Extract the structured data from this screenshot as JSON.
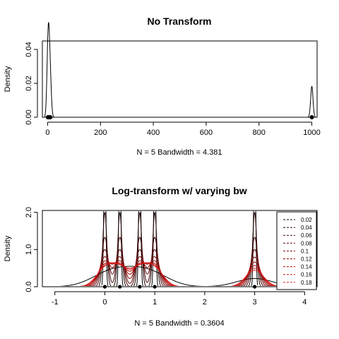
{
  "chart_data": [
    {
      "type": "line",
      "title": "No Transform",
      "ylabel": "Density",
      "xlabel": "N = 5   Bandwidth = 4.381",
      "xlim": [
        -20,
        1020
      ],
      "ylim": [
        0,
        0.045
      ],
      "x_ticks": [
        "0",
        "200",
        "400",
        "600",
        "800",
        "1000"
      ],
      "y_ticks": [
        "0.00",
        "0.02",
        "0.04"
      ],
      "observations": [
        1,
        2,
        5,
        10,
        1000
      ],
      "bandwidth": 4.381,
      "rug_points": [
        1,
        2,
        5,
        10,
        1000
      ]
    },
    {
      "type": "line",
      "title": "Log-transform w/ varying bw",
      "ylabel": "Density",
      "xlabel": "N = 5   Bandwidth = 0.3604",
      "xlim": [
        -1.25,
        4.25
      ],
      "ylim": [
        0,
        2.05
      ],
      "x_ticks": [
        "-1",
        "0",
        "1",
        "2",
        "3",
        "4"
      ],
      "y_ticks": [
        "0.0",
        "1.0",
        "2.0"
      ],
      "log_observations": [
        0,
        0.301,
        0.699,
        1,
        3
      ],
      "reference_bandwidth": 0.3604,
      "series": [
        {
          "name": "0.02",
          "bw": 0.02,
          "color": "#000000"
        },
        {
          "name": "0.04",
          "bw": 0.04,
          "color": "#200000"
        },
        {
          "name": "0.06",
          "bw": 0.06,
          "color": "#400000"
        },
        {
          "name": "0.08",
          "bw": 0.08,
          "color": "#600000"
        },
        {
          "name": "0.1",
          "bw": 0.1,
          "color": "#800000"
        },
        {
          "name": "0.12",
          "bw": 0.12,
          "color": "#990000"
        },
        {
          "name": "0.14",
          "bw": 0.14,
          "color": "#b30000"
        },
        {
          "name": "0.16",
          "bw": 0.16,
          "color": "#cc1010"
        },
        {
          "name": "0.18",
          "bw": 0.18,
          "color": "#e02020"
        }
      ],
      "rug_points": [
        0,
        0.301,
        0.699,
        1,
        3
      ]
    }
  ]
}
